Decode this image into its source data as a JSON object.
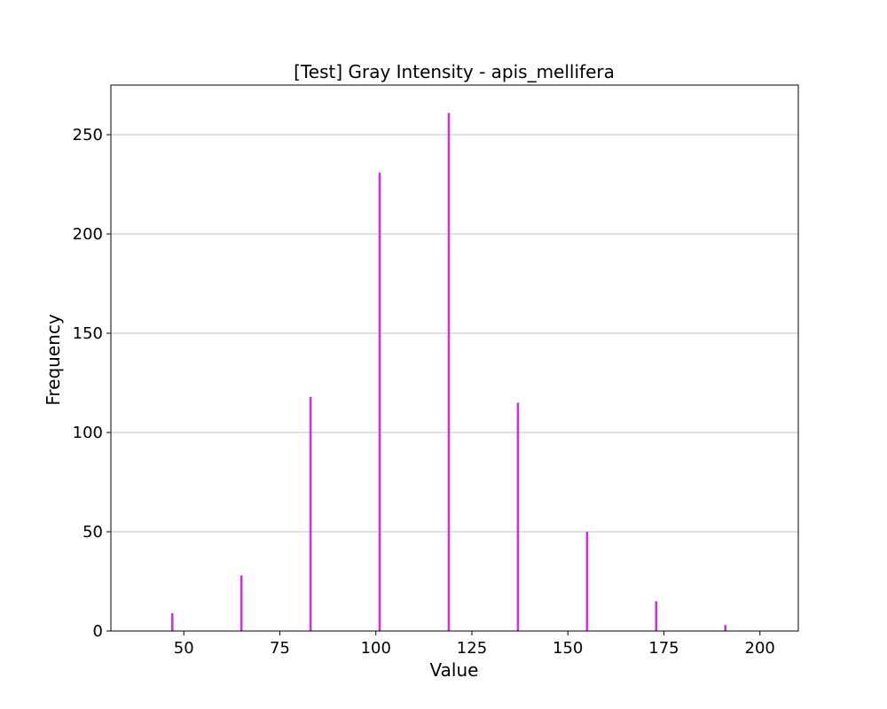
{
  "chart_data": {
    "type": "bar",
    "title": "[Test] Gray Intensity - apis_mellifera",
    "xlabel": "Value",
    "ylabel": "Frequency",
    "xlim": [
      31,
      210
    ],
    "ylim": [
      0,
      275
    ],
    "xticks": [
      50,
      75,
      100,
      125,
      150,
      175,
      200
    ],
    "yticks": [
      0,
      50,
      100,
      150,
      200,
      250
    ],
    "grid": "horizontal",
    "bar_color": "#cc33dd",
    "bars": [
      {
        "x": 47,
        "value": 9
      },
      {
        "x": 65,
        "value": 28
      },
      {
        "x": 83,
        "value": 118
      },
      {
        "x": 101,
        "value": 231
      },
      {
        "x": 119,
        "value": 261
      },
      {
        "x": 137,
        "value": 115
      },
      {
        "x": 155,
        "value": 50
      },
      {
        "x": 173,
        "value": 15
      },
      {
        "x": 191,
        "value": 3
      }
    ]
  }
}
